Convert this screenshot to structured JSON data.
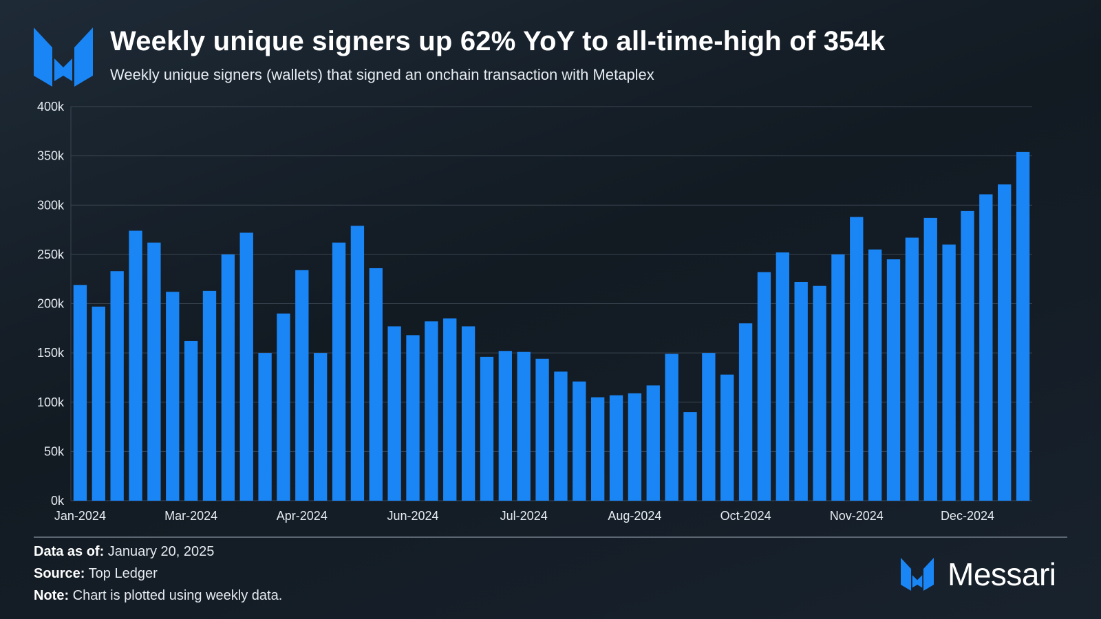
{
  "header": {
    "title": "Weekly unique signers up 62% YoY to all-time-high of 354k",
    "subtitle": "Weekly unique signers (wallets) that signed an onchain transaction with Metaplex",
    "logo_icon": "messari-m-logo-icon"
  },
  "chart_data": {
    "type": "bar",
    "title": "Weekly unique signers up 62% YoY to all-time-high of 354k",
    "subtitle": "Weekly unique signers (wallets) that signed an onchain transaction with Metaplex",
    "xlabel": "",
    "ylabel": "",
    "ylim": [
      0,
      400000
    ],
    "yticks": [
      "0k",
      "50k",
      "100k",
      "150k",
      "200k",
      "250k",
      "300k",
      "350k",
      "400k"
    ],
    "xtick_labels": [
      {
        "label": "Jan-2024",
        "index": 0
      },
      {
        "label": "Mar-2024",
        "index": 6
      },
      {
        "label": "Apr-2024",
        "index": 12
      },
      {
        "label": "Jun-2024",
        "index": 18
      },
      {
        "label": "Jul-2024",
        "index": 24
      },
      {
        "label": "Aug-2024",
        "index": 30
      },
      {
        "label": "Oct-2024",
        "index": 36
      },
      {
        "label": "Nov-2024",
        "index": 42
      },
      {
        "label": "Dec-2024",
        "index": 48
      }
    ],
    "grid": true,
    "bar_color": "#1a85f5",
    "values": [
      219000,
      197000,
      233000,
      274000,
      262000,
      212000,
      162000,
      213000,
      250000,
      272000,
      150000,
      190000,
      234000,
      150000,
      262000,
      279000,
      236000,
      177000,
      168000,
      182000,
      185000,
      177000,
      146000,
      152000,
      151000,
      144000,
      131000,
      121000,
      105000,
      107000,
      109000,
      117000,
      149000,
      90000,
      150000,
      128000,
      180000,
      232000,
      252000,
      222000,
      218000,
      250000,
      288000,
      255000,
      245000,
      267000,
      287000,
      260000,
      294000,
      311000,
      321000,
      354000
    ]
  },
  "footer": {
    "data_as_of_label": "Data as of:",
    "data_as_of_value": " January 20, 2025",
    "source_label": "Source:",
    "source_value": " Top Ledger",
    "note_label": "Note:",
    "note_value": " Chart is plotted using weekly data."
  },
  "brand": {
    "name": "Messari",
    "icon": "messari-m-logo-icon"
  }
}
